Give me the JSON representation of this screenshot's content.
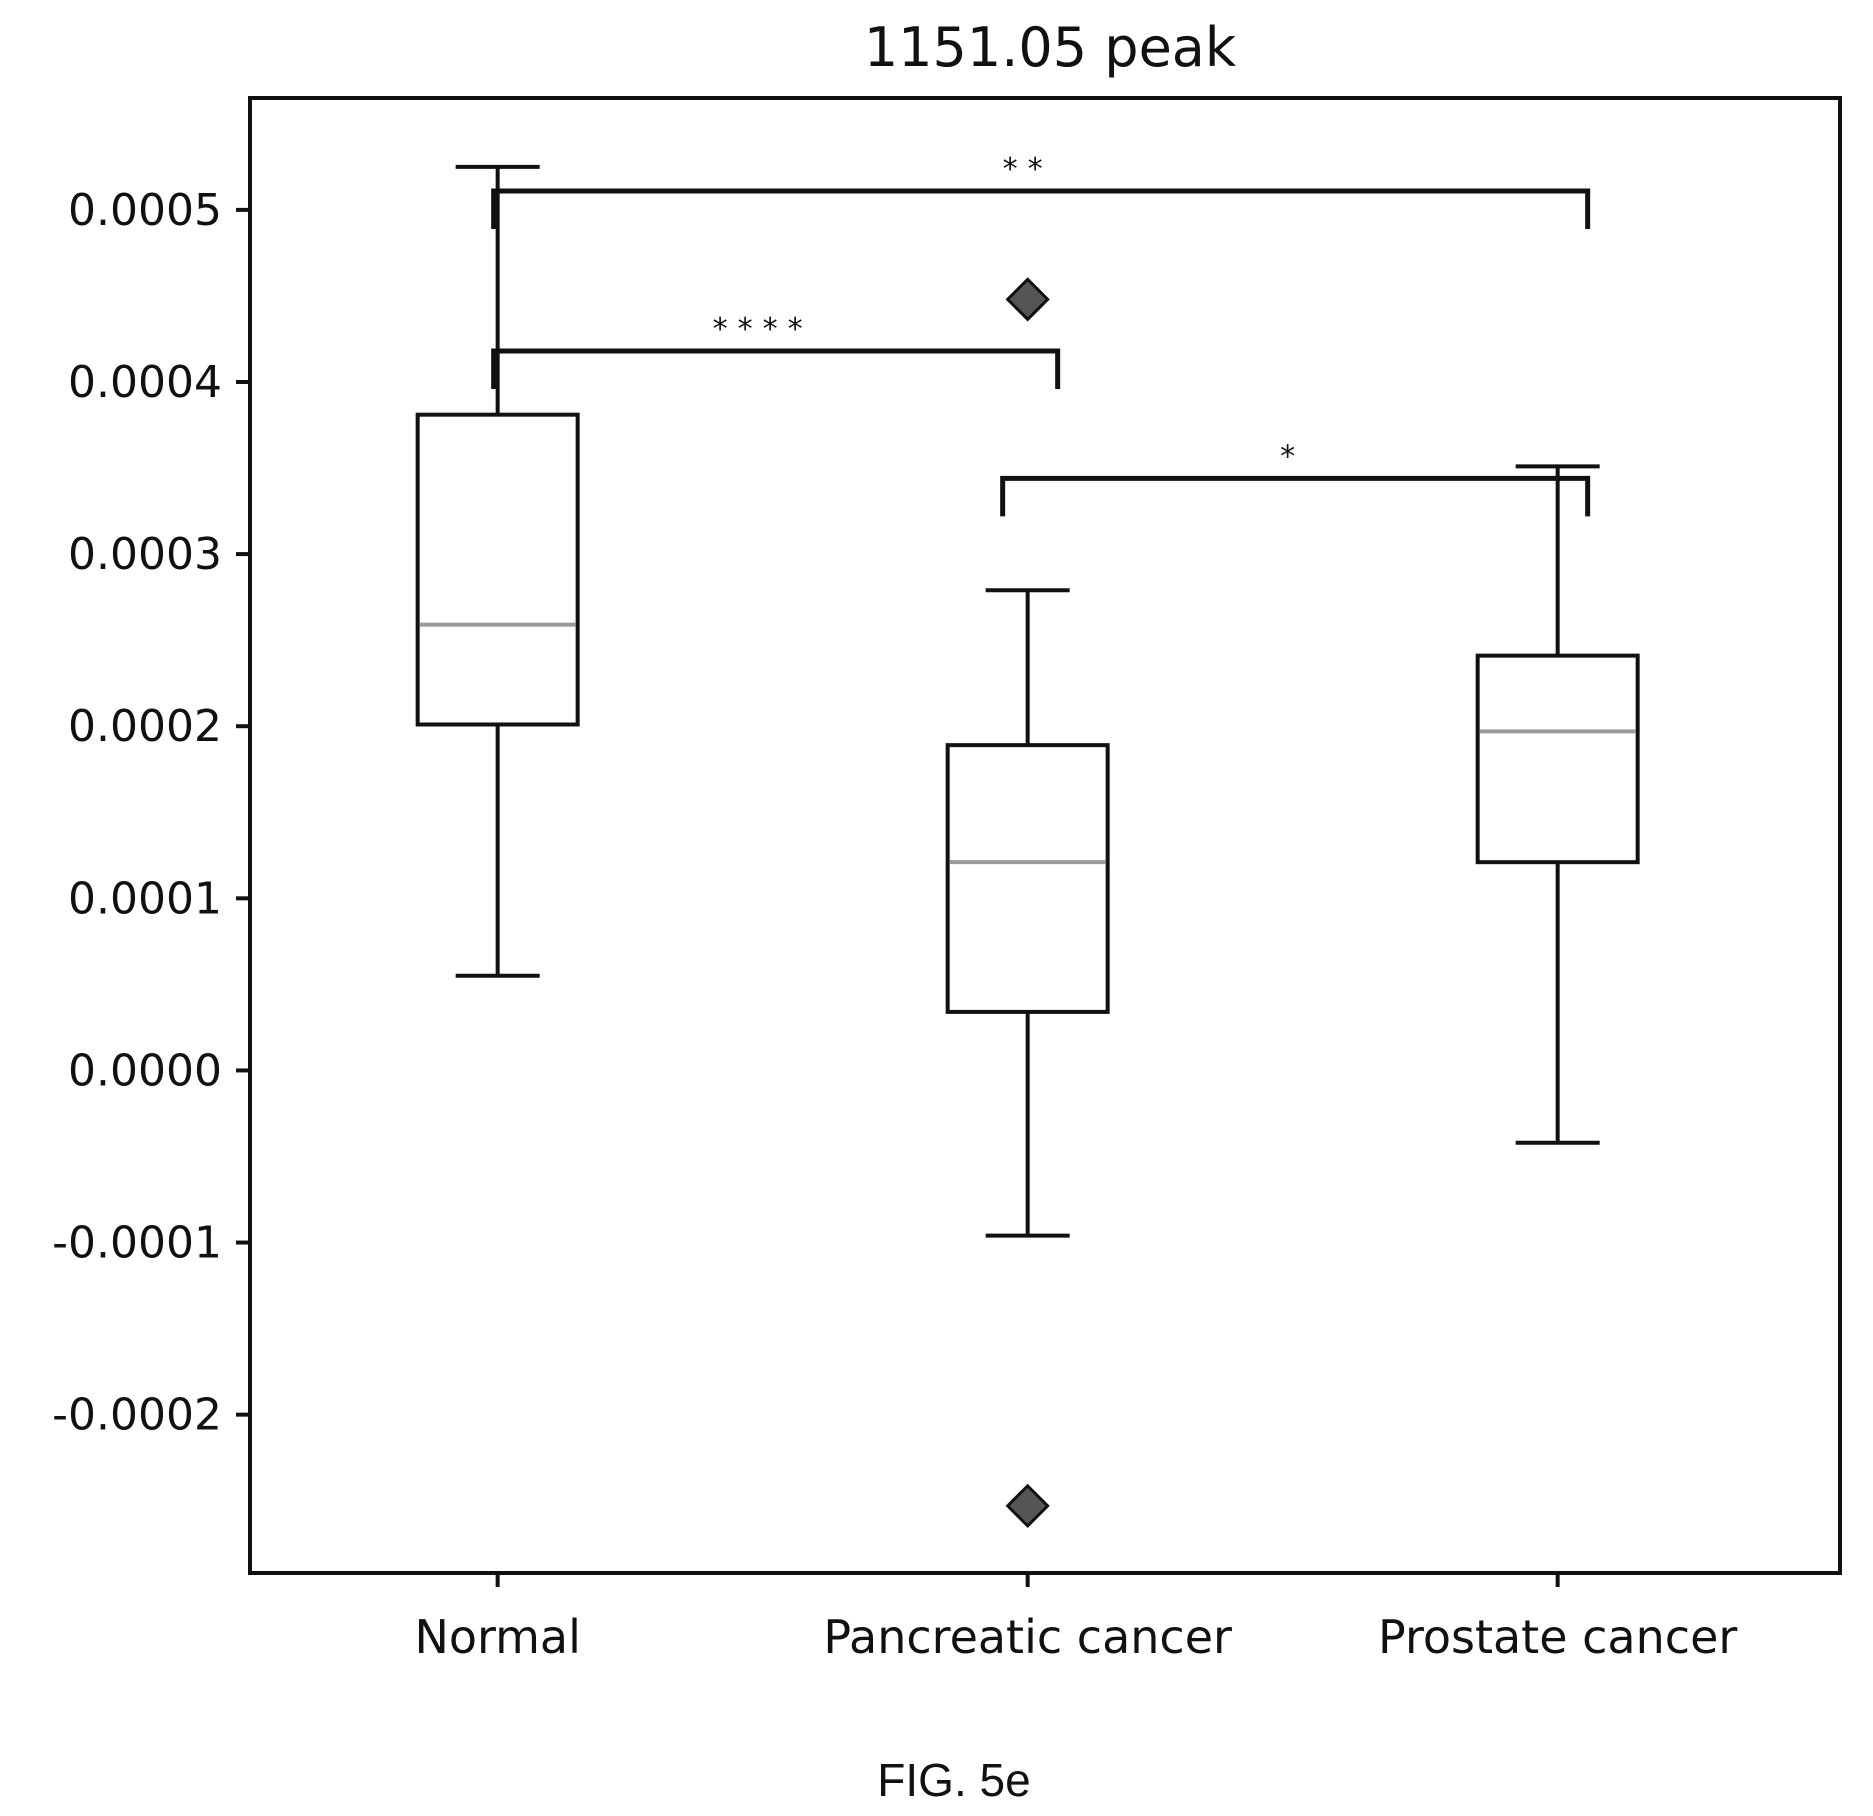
{
  "chart_data": {
    "type": "box",
    "title": "1151.05 peak",
    "xlabel": "",
    "ylabel": "",
    "ylim": [
      -0.000292,
      0.000565
    ],
    "yticks": [
      {
        "value": 0.0005,
        "label": "0.0005"
      },
      {
        "value": 0.0004,
        "label": "0.0004"
      },
      {
        "value": 0.0003,
        "label": "0.0003"
      },
      {
        "value": 0.0002,
        "label": "0.0002"
      },
      {
        "value": 0.0001,
        "label": "0.0001"
      },
      {
        "value": 0.0,
        "label": "0.0000"
      },
      {
        "value": -0.0001,
        "label": "-0.0001"
      },
      {
        "value": -0.0002,
        "label": "-0.0002"
      }
    ],
    "categories": [
      "Normal",
      "Pancreatic cancer",
      "Prostate cancer"
    ],
    "boxes": [
      {
        "category": "Normal",
        "whisker_low": 5.5e-05,
        "q1": 0.000201,
        "median": 0.000259,
        "q3": 0.000381,
        "whisker_high": 0.000525,
        "outliers": []
      },
      {
        "category": "Pancreatic cancer",
        "whisker_low": -9.6e-05,
        "q1": 3.4e-05,
        "median": 0.000121,
        "q3": 0.000189,
        "whisker_high": 0.000279,
        "outliers": [
          0.000448,
          -0.000253
        ]
      },
      {
        "category": "Prostate cancer",
        "whisker_low": -4.2e-05,
        "q1": 0.000121,
        "median": 0.000197,
        "q3": 0.000241,
        "whisker_high": 0.000351,
        "outliers": []
      }
    ],
    "significance": [
      {
        "from": "Normal",
        "to": "Prostate cancer",
        "y": 0.000511,
        "stars": "**"
      },
      {
        "from": "Normal",
        "to": "Pancreatic cancer",
        "y": 0.000418,
        "stars": "****"
      },
      {
        "from": "Pancreatic cancer",
        "to": "Prostate cancer",
        "y": 0.000344,
        "stars": "*"
      }
    ],
    "grid": false,
    "legend": "none"
  },
  "caption": "FIG. 5e"
}
